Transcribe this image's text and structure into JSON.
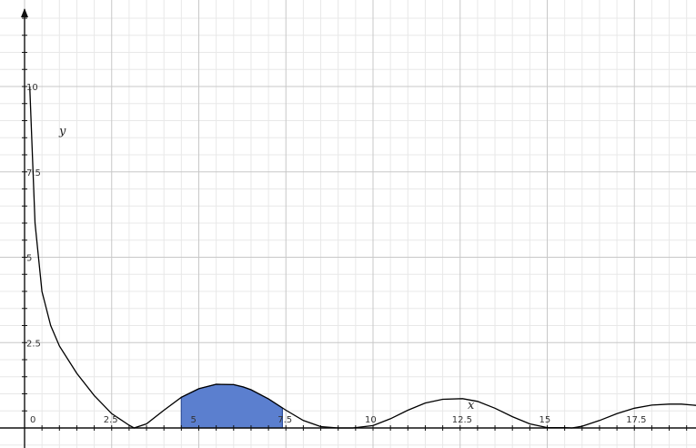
{
  "chart_data": {
    "type": "line",
    "title": "",
    "xlabel": "x",
    "ylabel": "y",
    "xlim": [
      -0.05,
      19.35
    ],
    "ylim": [
      -0.5,
      12.2
    ],
    "major_step": 2.5,
    "minor_step": 0.5,
    "grid": true,
    "x_ticks": [
      {
        "value": 0,
        "label": "0"
      },
      {
        "value": 2.5,
        "label": "2.5"
      },
      {
        "value": 5,
        "label": "5"
      },
      {
        "value": 7.5,
        "label": "7.5"
      },
      {
        "value": 10,
        "label": "10"
      },
      {
        "value": 12.5,
        "label": "12.5"
      },
      {
        "value": 15,
        "label": "15"
      },
      {
        "value": 17.5,
        "label": "17.5"
      }
    ],
    "y_ticks": [
      {
        "value": 2.5,
        "label": "2.5"
      },
      {
        "value": 5,
        "label": "5"
      },
      {
        "value": 7.5,
        "label": "7.5"
      },
      {
        "value": 10,
        "label": "10"
      }
    ],
    "series": [
      {
        "x": [
          0.15,
          0.3,
          0.5,
          0.75,
          1.0,
          1.5,
          2.0,
          2.5,
          3.0,
          3.14,
          3.5,
          4.0,
          4.5,
          5.0,
          5.5,
          6.0,
          6.28,
          6.5,
          7.0,
          7.5,
          8.0,
          8.5,
          9.0,
          9.42,
          10.0,
          10.5,
          11.0,
          11.5,
          12.0,
          12.57,
          13.0,
          13.5,
          14.0,
          14.5,
          15.0,
          15.5,
          15.71,
          16.0,
          16.5,
          17.0,
          17.5,
          18.0,
          18.5,
          18.85,
          19.3
        ],
        "y": [
          10.0,
          6.0,
          4.0,
          3.0,
          2.4,
          1.6,
          0.95,
          0.42,
          0.08,
          0.0,
          0.12,
          0.52,
          0.9,
          1.15,
          1.28,
          1.27,
          1.2,
          1.12,
          0.85,
          0.52,
          0.22,
          0.04,
          0.0,
          0.0,
          0.07,
          0.27,
          0.52,
          0.73,
          0.84,
          0.86,
          0.78,
          0.58,
          0.33,
          0.12,
          0.01,
          0.01,
          0.0,
          0.05,
          0.22,
          0.42,
          0.58,
          0.67,
          0.7,
          0.7,
          0.66
        ]
      }
    ],
    "shaded_region": {
      "x_from": 4.5,
      "x_to": 7.4,
      "color": "#5b7fcf",
      "edge_color": "#2f4f9a"
    },
    "curve_color": "#000000",
    "grid_major_color": "#c8c8c8",
    "grid_minor_color": "#e8e8e8"
  }
}
